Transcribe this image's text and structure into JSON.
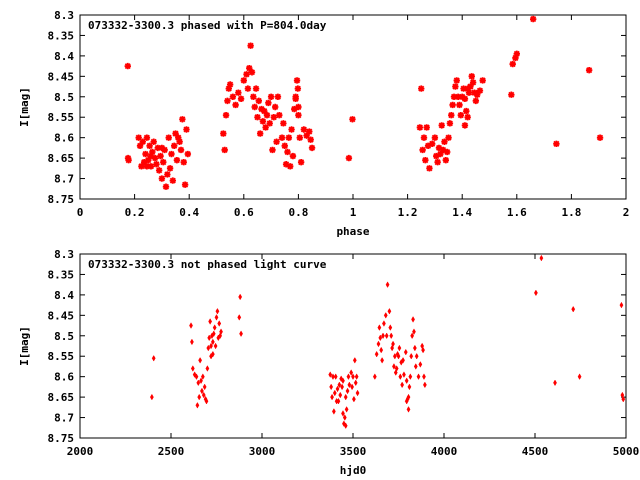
{
  "chart_data": [
    {
      "type": "scatter",
      "title": "073332-3300.3 phased with P=804.0day",
      "xlabel": "phase",
      "ylabel": "I[mag]",
      "xlim": [
        0,
        2
      ],
      "ylim": [
        8.3,
        8.75
      ],
      "y_inverted": true,
      "x_ticks": [
        0,
        0.2,
        0.4,
        0.6,
        0.8,
        1,
        1.2,
        1.4,
        1.6,
        1.8,
        2
      ],
      "x_tick_labels": [
        "0",
        "0.2",
        "0.4",
        "0.6",
        "0.8",
        "1",
        "1.2",
        "1.4",
        "1.6",
        "1.8",
        "2"
      ],
      "y_ticks": [
        8.3,
        8.35,
        8.4,
        8.45,
        8.5,
        8.55,
        8.6,
        8.65,
        8.7,
        8.75
      ],
      "y_tick_labels": [
        "8.3",
        "8.35",
        "8.4",
        "8.45",
        "8.5",
        "8.55",
        "8.6",
        "8.65",
        "8.7",
        "8.75"
      ],
      "marker": "star",
      "color": "#ff0000",
      "grid": false,
      "points": [
        [
          0.175,
          8.425
        ],
        [
          0.178,
          8.655
        ],
        [
          0.176,
          8.65
        ],
        [
          0.215,
          8.6
        ],
        [
          0.22,
          8.62
        ],
        [
          0.225,
          8.67
        ],
        [
          0.23,
          8.61
        ],
        [
          0.235,
          8.66
        ],
        [
          0.24,
          8.64
        ],
        [
          0.245,
          8.6
        ],
        [
          0.25,
          8.655
        ],
        [
          0.255,
          8.62
        ],
        [
          0.26,
          8.67
        ],
        [
          0.265,
          8.635
        ],
        [
          0.27,
          8.61
        ],
        [
          0.275,
          8.65
        ],
        [
          0.28,
          8.665
        ],
        [
          0.285,
          8.625
        ],
        [
          0.29,
          8.68
        ],
        [
          0.295,
          8.645
        ],
        [
          0.3,
          8.7
        ],
        [
          0.305,
          8.66
        ],
        [
          0.31,
          8.63
        ],
        [
          0.315,
          8.72
        ],
        [
          0.32,
          8.69
        ],
        [
          0.325,
          8.6
        ],
        [
          0.33,
          8.675
        ],
        [
          0.335,
          8.64
        ],
        [
          0.34,
          8.705
        ],
        [
          0.345,
          8.62
        ],
        [
          0.35,
          8.59
        ],
        [
          0.355,
          8.655
        ],
        [
          0.36,
          8.6
        ],
        [
          0.365,
          8.61
        ],
        [
          0.37,
          8.63
        ],
        [
          0.375,
          8.555
        ],
        [
          0.38,
          8.66
        ],
        [
          0.385,
          8.715
        ],
        [
          0.39,
          8.58
        ],
        [
          0.395,
          8.64
        ],
        [
          0.3,
          8.625
        ],
        [
          0.26,
          8.645
        ],
        [
          0.245,
          8.67
        ],
        [
          0.525,
          8.59
        ],
        [
          0.53,
          8.63
        ],
        [
          0.535,
          8.545
        ],
        [
          0.54,
          8.51
        ],
        [
          0.545,
          8.48
        ],
        [
          0.55,
          8.47
        ],
        [
          0.56,
          8.5
        ],
        [
          0.57,
          8.52
        ],
        [
          0.58,
          8.49
        ],
        [
          0.59,
          8.505
        ],
        [
          0.6,
          8.46
        ],
        [
          0.61,
          8.445
        ],
        [
          0.615,
          8.48
        ],
        [
          0.62,
          8.43
        ],
        [
          0.625,
          8.375
        ],
        [
          0.63,
          8.44
        ],
        [
          0.635,
          8.5
        ],
        [
          0.64,
          8.525
        ],
        [
          0.645,
          8.48
        ],
        [
          0.65,
          8.55
        ],
        [
          0.655,
          8.51
        ],
        [
          0.66,
          8.59
        ],
        [
          0.665,
          8.53
        ],
        [
          0.67,
          8.56
        ],
        [
          0.675,
          8.535
        ],
        [
          0.68,
          8.575
        ],
        [
          0.685,
          8.545
        ],
        [
          0.69,
          8.515
        ],
        [
          0.695,
          8.565
        ],
        [
          0.7,
          8.5
        ],
        [
          0.705,
          8.63
        ],
        [
          0.71,
          8.55
        ],
        [
          0.715,
          8.525
        ],
        [
          0.72,
          8.61
        ],
        [
          0.725,
          8.5
        ],
        [
          0.73,
          8.545
        ],
        [
          0.74,
          8.6
        ],
        [
          0.745,
          8.565
        ],
        [
          0.75,
          8.62
        ],
        [
          0.755,
          8.665
        ],
        [
          0.76,
          8.635
        ],
        [
          0.765,
          8.6
        ],
        [
          0.77,
          8.67
        ],
        [
          0.775,
          8.58
        ],
        [
          0.78,
          8.645
        ],
        [
          0.785,
          8.53
        ],
        [
          0.79,
          8.505
        ],
        [
          0.795,
          8.46
        ],
        [
          0.798,
          8.48
        ],
        [
          0.8,
          8.545
        ],
        [
          0.805,
          8.6
        ],
        [
          0.81,
          8.66
        ],
        [
          0.82,
          8.58
        ],
        [
          0.83,
          8.595
        ],
        [
          0.84,
          8.585
        ],
        [
          0.85,
          8.625
        ],
        [
          0.845,
          8.605
        ],
        [
          0.79,
          8.5
        ],
        [
          0.8,
          8.525
        ],
        [
          0.985,
          8.65
        ],
        [
          0.998,
          8.555
        ],
        [
          1.245,
          8.575
        ],
        [
          1.25,
          8.48
        ],
        [
          1.255,
          8.63
        ],
        [
          1.26,
          8.6
        ],
        [
          1.265,
          8.655
        ],
        [
          1.27,
          8.575
        ],
        [
          1.275,
          8.62
        ],
        [
          1.28,
          8.675
        ],
        [
          1.29,
          8.615
        ],
        [
          1.3,
          8.6
        ],
        [
          1.305,
          8.645
        ],
        [
          1.31,
          8.66
        ],
        [
          1.315,
          8.625
        ],
        [
          1.32,
          8.64
        ],
        [
          1.325,
          8.57
        ],
        [
          1.33,
          8.63
        ],
        [
          1.335,
          8.61
        ],
        [
          1.34,
          8.655
        ],
        [
          1.345,
          8.635
        ],
        [
          1.35,
          8.6
        ],
        [
          1.355,
          8.565
        ],
        [
          1.36,
          8.545
        ],
        [
          1.365,
          8.52
        ],
        [
          1.37,
          8.5
        ],
        [
          1.375,
          8.475
        ],
        [
          1.38,
          8.46
        ],
        [
          1.385,
          8.5
        ],
        [
          1.39,
          8.52
        ],
        [
          1.395,
          8.545
        ],
        [
          1.4,
          8.5
        ],
        [
          1.405,
          8.48
        ],
        [
          1.41,
          8.505
        ],
        [
          1.415,
          8.535
        ],
        [
          1.42,
          8.48
        ],
        [
          1.425,
          8.49
        ],
        [
          1.43,
          8.475
        ],
        [
          1.435,
          8.45
        ],
        [
          1.44,
          8.465
        ],
        [
          1.445,
          8.49
        ],
        [
          1.45,
          8.51
        ],
        [
          1.455,
          8.495
        ],
        [
          1.465,
          8.485
        ],
        [
          1.475,
          8.46
        ],
        [
          1.42,
          8.55
        ],
        [
          1.41,
          8.57
        ],
        [
          1.58,
          8.495
        ],
        [
          1.585,
          8.42
        ],
        [
          1.595,
          8.405
        ],
        [
          1.6,
          8.395
        ],
        [
          1.66,
          8.31
        ],
        [
          1.745,
          8.615
        ],
        [
          1.865,
          8.435
        ],
        [
          1.905,
          8.6
        ]
      ]
    },
    {
      "type": "scatter",
      "title": "073332-3300.3 not phased light curve",
      "xlabel": "hjd0",
      "ylabel": "I[mag]",
      "xlim": [
        2000,
        5000
      ],
      "ylim": [
        8.3,
        8.75
      ],
      "y_inverted": true,
      "x_ticks": [
        2000,
        2500,
        3000,
        3500,
        4000,
        4500,
        5000
      ],
      "x_tick_labels": [
        "2000",
        "2500",
        "3000",
        "3500",
        "4000",
        "4500",
        "5000"
      ],
      "y_ticks": [
        8.3,
        8.35,
        8.4,
        8.45,
        8.5,
        8.55,
        8.6,
        8.65,
        8.7,
        8.75
      ],
      "y_tick_labels": [
        "8.3",
        "8.35",
        "8.4",
        "8.45",
        "8.5",
        "8.55",
        "8.6",
        "8.65",
        "8.7",
        "8.75"
      ],
      "marker": "diamond",
      "color": "#ff0000",
      "grid": false,
      "points": [
        [
          2395,
          8.65
        ],
        [
          2405,
          8.555
        ],
        [
          2610,
          8.475
        ],
        [
          2615,
          8.515
        ],
        [
          2620,
          8.58
        ],
        [
          2630,
          8.595
        ],
        [
          2640,
          8.6
        ],
        [
          2645,
          8.67
        ],
        [
          2650,
          8.615
        ],
        [
          2655,
          8.65
        ],
        [
          2660,
          8.56
        ],
        [
          2665,
          8.61
        ],
        [
          2670,
          8.635
        ],
        [
          2675,
          8.6
        ],
        [
          2680,
          8.645
        ],
        [
          2685,
          8.625
        ],
        [
          2690,
          8.655
        ],
        [
          2695,
          8.66
        ],
        [
          2700,
          8.58
        ],
        [
          2705,
          8.53
        ],
        [
          2710,
          8.505
        ],
        [
          2715,
          8.465
        ],
        [
          2720,
          8.55
        ],
        [
          2725,
          8.5
        ],
        [
          2730,
          8.545
        ],
        [
          2735,
          8.495
        ],
        [
          2740,
          8.48
        ],
        [
          2745,
          8.525
        ],
        [
          2750,
          8.455
        ],
        [
          2755,
          8.44
        ],
        [
          2760,
          8.505
        ],
        [
          2765,
          8.47
        ],
        [
          2770,
          8.5
        ],
        [
          2775,
          8.49
        ],
        [
          2720,
          8.525
        ],
        [
          2730,
          8.515
        ],
        [
          2875,
          8.455
        ],
        [
          2880,
          8.405
        ],
        [
          2885,
          8.495
        ],
        [
          3375,
          8.595
        ],
        [
          3380,
          8.625
        ],
        [
          3385,
          8.65
        ],
        [
          3390,
          8.6
        ],
        [
          3395,
          8.685
        ],
        [
          3400,
          8.64
        ],
        [
          3405,
          8.6
        ],
        [
          3410,
          8.66
        ],
        [
          3415,
          8.63
        ],
        [
          3420,
          8.66
        ],
        [
          3425,
          8.62
        ],
        [
          3430,
          8.645
        ],
        [
          3435,
          8.605
        ],
        [
          3440,
          8.625
        ],
        [
          3445,
          8.61
        ],
        [
          3450,
          8.715
        ],
        [
          3455,
          8.7
        ],
        [
          3460,
          8.65
        ],
        [
          3465,
          8.68
        ],
        [
          3470,
          8.635
        ],
        [
          3475,
          8.6
        ],
        [
          3480,
          8.62
        ],
        [
          3490,
          8.59
        ],
        [
          3495,
          8.625
        ],
        [
          3500,
          8.6
        ],
        [
          3505,
          8.655
        ],
        [
          3510,
          8.56
        ],
        [
          3515,
          8.615
        ],
        [
          3520,
          8.6
        ],
        [
          3525,
          8.64
        ],
        [
          3460,
          8.72
        ],
        [
          3445,
          8.69
        ],
        [
          3620,
          8.6
        ],
        [
          3630,
          8.545
        ],
        [
          3640,
          8.52
        ],
        [
          3645,
          8.48
        ],
        [
          3650,
          8.505
        ],
        [
          3655,
          8.535
        ],
        [
          3660,
          8.56
        ],
        [
          3665,
          8.5
        ],
        [
          3670,
          8.47
        ],
        [
          3680,
          8.45
        ],
        [
          3685,
          8.5
        ],
        [
          3690,
          8.375
        ],
        [
          3700,
          8.44
        ],
        [
          3705,
          8.48
        ],
        [
          3710,
          8.5
        ],
        [
          3715,
          8.53
        ],
        [
          3720,
          8.52
        ],
        [
          3725,
          8.575
        ],
        [
          3730,
          8.55
        ],
        [
          3735,
          8.59
        ],
        [
          3740,
          8.58
        ],
        [
          3745,
          8.545
        ],
        [
          3750,
          8.55
        ],
        [
          3755,
          8.53
        ],
        [
          3760,
          8.6
        ],
        [
          3765,
          8.565
        ],
        [
          3770,
          8.62
        ],
        [
          3775,
          8.56
        ],
        [
          3780,
          8.595
        ],
        [
          3790,
          8.54
        ],
        [
          3795,
          8.61
        ],
        [
          3800,
          8.655
        ],
        [
          3805,
          8.68
        ],
        [
          3810,
          8.625
        ],
        [
          3815,
          8.6
        ],
        [
          3820,
          8.55
        ],
        [
          3825,
          8.5
        ],
        [
          3830,
          8.46
        ],
        [
          3835,
          8.49
        ],
        [
          3840,
          8.53
        ],
        [
          3845,
          8.575
        ],
        [
          3850,
          8.55
        ],
        [
          3860,
          8.6
        ],
        [
          3870,
          8.57
        ],
        [
          3880,
          8.525
        ],
        [
          3885,
          8.535
        ],
        [
          3890,
          8.6
        ],
        [
          3895,
          8.62
        ],
        [
          3795,
          8.66
        ],
        [
          3805,
          8.65
        ],
        [
          4505,
          8.395
        ],
        [
          4535,
          8.31
        ],
        [
          4610,
          8.615
        ],
        [
          4710,
          8.435
        ],
        [
          4745,
          8.6
        ],
        [
          4975,
          8.425
        ],
        [
          4980,
          8.645
        ],
        [
          4985,
          8.655
        ]
      ]
    }
  ]
}
